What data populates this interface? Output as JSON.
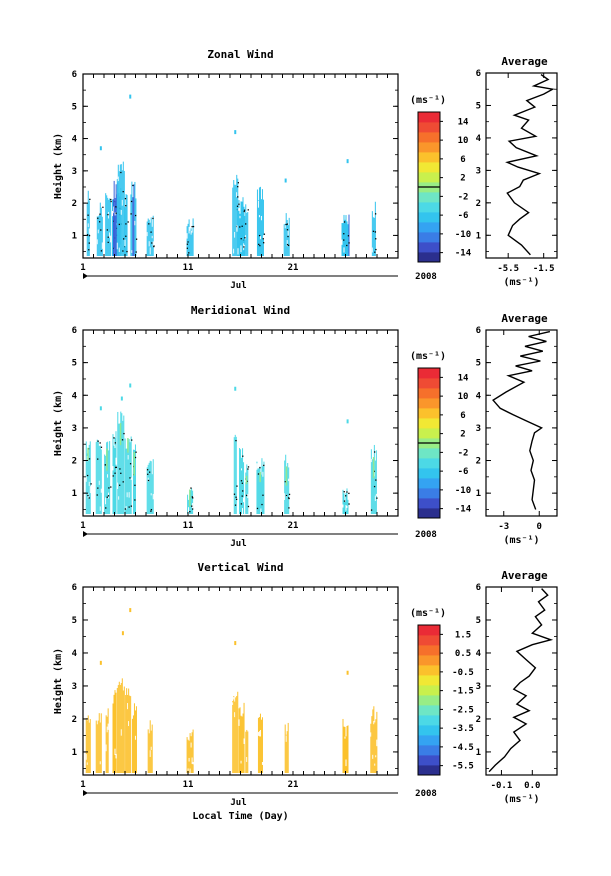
{
  "chart_data": [
    {
      "type": "heatmap",
      "title": "Zonal Wind",
      "ylabel": "Height (km)",
      "ylim": [
        0.3,
        6
      ],
      "yticks": [
        "1",
        "2",
        "3",
        "4",
        "5",
        "6"
      ],
      "xlim": [
        1,
        31
      ],
      "xticks": [
        "1",
        "11",
        "21"
      ],
      "x_month_label": "Jul",
      "x_year_label": "2008",
      "units_label": "(ms⁻¹)",
      "colorbar_ticks": [
        "14",
        "10",
        "6",
        "2",
        "-2",
        "-6",
        "-10",
        "-14"
      ],
      "colorbar_range": [
        -15,
        15
      ],
      "dominant_color": "#33c4ee",
      "patches": [
        {
          "day": 1.5,
          "ytop": 2.5,
          "dark": 0
        },
        {
          "day": 2.6,
          "ytop": 2.1,
          "dark": 0
        },
        {
          "day": 3.4,
          "ytop": 2.4,
          "dark": 0
        },
        {
          "day": 4.0,
          "ytop": 2.2,
          "dark": 1
        },
        {
          "day": 4.3,
          "ytop": 2.7,
          "dark": 1
        },
        {
          "day": 4.6,
          "ytop": 3.3,
          "dark": 0
        },
        {
          "day": 5.1,
          "ytop": 2.3,
          "dark": 0
        },
        {
          "day": 5.8,
          "ytop": 2.7,
          "dark": 1
        },
        {
          "day": 7.4,
          "ytop": 1.8,
          "dark": 0
        },
        {
          "day": 11.2,
          "ytop": 1.6,
          "dark": 0
        },
        {
          "day": 15.5,
          "ytop": 2.9,
          "dark": 0
        },
        {
          "day": 16.0,
          "ytop": 2.2,
          "dark": 0
        },
        {
          "day": 16.5,
          "ytop": 2.0,
          "dark": 0
        },
        {
          "day": 17.9,
          "ytop": 2.6,
          "dark": 0
        },
        {
          "day": 20.4,
          "ytop": 1.8,
          "dark": 0
        },
        {
          "day": 26.0,
          "ytop": 1.7,
          "dark": 1
        },
        {
          "day": 28.7,
          "ytop": 2.1,
          "dark": 0
        }
      ],
      "speckles": [
        {
          "day": 5.5,
          "y": 5.3
        },
        {
          "day": 2.7,
          "y": 3.7
        },
        {
          "day": 15.5,
          "y": 4.2
        },
        {
          "day": 26.2,
          "y": 3.3
        },
        {
          "day": 20.3,
          "y": 2.7
        }
      ],
      "average": {
        "title": "Average",
        "xlabel": "(ms⁻¹)",
        "xticks": [
          "-5.5",
          "-1.5"
        ],
        "xlim": [
          -8,
          0
        ],
        "yticks": [
          "1",
          "2",
          "3",
          "4",
          "5",
          "6"
        ],
        "profile": [
          {
            "x": -3.0,
            "y": 0.4
          },
          {
            "x": -4.0,
            "y": 0.7
          },
          {
            "x": -5.5,
            "y": 1.0
          },
          {
            "x": -5.0,
            "y": 1.3
          },
          {
            "x": -4.2,
            "y": 1.5
          },
          {
            "x": -3.2,
            "y": 1.7
          },
          {
            "x": -4.8,
            "y": 2.0
          },
          {
            "x": -5.6,
            "y": 2.3
          },
          {
            "x": -4.2,
            "y": 2.5
          },
          {
            "x": -3.8,
            "y": 2.7
          },
          {
            "x": -2.0,
            "y": 2.9
          },
          {
            "x": -4.4,
            "y": 3.1
          },
          {
            "x": -5.6,
            "y": 3.25
          },
          {
            "x": -2.3,
            "y": 3.45
          },
          {
            "x": -4.6,
            "y": 3.7
          },
          {
            "x": -5.4,
            "y": 3.9
          },
          {
            "x": -2.4,
            "y": 4.05
          },
          {
            "x": -4.0,
            "y": 4.3
          },
          {
            "x": -3.2,
            "y": 4.55
          },
          {
            "x": -4.8,
            "y": 4.7
          },
          {
            "x": -2.5,
            "y": 4.95
          },
          {
            "x": -3.4,
            "y": 5.15
          },
          {
            "x": -1.5,
            "y": 5.35
          },
          {
            "x": -0.5,
            "y": 5.5
          },
          {
            "x": -2.6,
            "y": 5.6
          },
          {
            "x": -1.0,
            "y": 5.8
          },
          {
            "x": -1.8,
            "y": 5.95
          }
        ]
      }
    },
    {
      "type": "heatmap",
      "title": "Meridional Wind",
      "ylabel": "Height (km)",
      "ylim": [
        0.3,
        6
      ],
      "yticks": [
        "1",
        "2",
        "3",
        "4",
        "5",
        "6"
      ],
      "xlim": [
        1,
        31
      ],
      "xticks": [
        "1",
        "11",
        "21"
      ],
      "x_month_label": "Jul",
      "x_year_label": "2008",
      "units_label": "(ms⁻¹)",
      "colorbar_ticks": [
        "14",
        "10",
        "6",
        "2",
        "-2",
        "-6",
        "-10",
        "-14"
      ],
      "colorbar_range": [
        -15,
        15
      ],
      "dominant_color": "#4cd9e6",
      "patches": [
        {
          "day": 1.5,
          "ytop": 2.6,
          "dark": 0
        },
        {
          "day": 2.5,
          "ytop": 2.8,
          "dark": 0
        },
        {
          "day": 3.3,
          "ytop": 2.6,
          "dark": 0
        },
        {
          "day": 4.0,
          "ytop": 3.0,
          "dark": 0
        },
        {
          "day": 4.6,
          "ytop": 3.5,
          "dark": 0
        },
        {
          "day": 5.3,
          "ytop": 2.9,
          "dark": 0
        },
        {
          "day": 5.9,
          "ytop": 2.5,
          "dark": 0
        },
        {
          "day": 7.4,
          "ytop": 2.1,
          "dark": 0
        },
        {
          "day": 11.2,
          "ytop": 1.3,
          "dark": 0
        },
        {
          "day": 15.5,
          "ytop": 3.0,
          "dark": 0
        },
        {
          "day": 16.1,
          "ytop": 2.4,
          "dark": 0
        },
        {
          "day": 16.6,
          "ytop": 2.0,
          "dark": 0
        },
        {
          "day": 17.9,
          "ytop": 2.1,
          "dark": 0
        },
        {
          "day": 20.4,
          "ytop": 2.2,
          "dark": 0
        },
        {
          "day": 26.0,
          "ytop": 1.2,
          "dark": 0
        },
        {
          "day": 28.7,
          "ytop": 2.5,
          "dark": 0
        }
      ],
      "speckles": [
        {
          "day": 5.5,
          "y": 4.3
        },
        {
          "day": 2.7,
          "y": 3.6
        },
        {
          "day": 15.5,
          "y": 4.2
        },
        {
          "day": 26.2,
          "y": 3.2
        },
        {
          "day": 4.7,
          "y": 3.9
        }
      ],
      "average": {
        "title": "Average",
        "xlabel": "(ms⁻¹)",
        "xticks": [
          "-3",
          "0"
        ],
        "xlim": [
          -4.5,
          1.5
        ],
        "yticks": [
          "1",
          "2",
          "3",
          "4",
          "5",
          "6"
        ],
        "profile": [
          {
            "x": -0.3,
            "y": 0.5
          },
          {
            "x": -0.6,
            "y": 0.8
          },
          {
            "x": -0.5,
            "y": 1.1
          },
          {
            "x": -0.4,
            "y": 1.4
          },
          {
            "x": -0.7,
            "y": 1.7
          },
          {
            "x": -0.5,
            "y": 2.0
          },
          {
            "x": -0.8,
            "y": 2.3
          },
          {
            "x": -0.6,
            "y": 2.6
          },
          {
            "x": -0.4,
            "y": 2.85
          },
          {
            "x": 0.2,
            "y": 3.0
          },
          {
            "x": -1.0,
            "y": 3.2
          },
          {
            "x": -2.2,
            "y": 3.4
          },
          {
            "x": -3.3,
            "y": 3.6
          },
          {
            "x": -3.9,
            "y": 3.85
          },
          {
            "x": -2.8,
            "y": 4.1
          },
          {
            "x": -1.3,
            "y": 4.4
          },
          {
            "x": -2.6,
            "y": 4.6
          },
          {
            "x": -0.6,
            "y": 4.75
          },
          {
            "x": -2.0,
            "y": 4.9
          },
          {
            "x": 0.1,
            "y": 5.05
          },
          {
            "x": -1.6,
            "y": 5.2
          },
          {
            "x": 0.3,
            "y": 5.35
          },
          {
            "x": -1.2,
            "y": 5.5
          },
          {
            "x": 0.6,
            "y": 5.65
          },
          {
            "x": -0.9,
            "y": 5.8
          },
          {
            "x": 0.9,
            "y": 5.95
          }
        ]
      }
    },
    {
      "type": "heatmap",
      "title": "Vertical Wind",
      "ylabel": "Height (km)",
      "xlabel": "Local Time (Day)",
      "ylim": [
        0.3,
        6
      ],
      "yticks": [
        "1",
        "2",
        "3",
        "4",
        "5",
        "6"
      ],
      "xlim": [
        1,
        31
      ],
      "xticks": [
        "1",
        "11",
        "21"
      ],
      "x_month_label": "Jul",
      "x_year_label": "2008",
      "units_label": "(ms⁻¹)",
      "colorbar_ticks": [
        "1.5",
        "0.5",
        "-0.5",
        "-1.5",
        "-2.5",
        "-3.5",
        "-4.5",
        "-5.5"
      ],
      "colorbar_range": [
        -6,
        2
      ],
      "dominant_color": "#fbc12c",
      "patches": [
        {
          "day": 1.5,
          "ytop": 2.4,
          "dark": 0
        },
        {
          "day": 2.5,
          "ytop": 2.2,
          "dark": 0
        },
        {
          "day": 3.3,
          "ytop": 2.6,
          "dark": 0
        },
        {
          "day": 4.0,
          "ytop": 3.0,
          "dark": 0
        },
        {
          "day": 4.6,
          "ytop": 3.3,
          "dark": 0
        },
        {
          "day": 5.3,
          "ytop": 3.0,
          "dark": 0
        },
        {
          "day": 5.9,
          "ytop": 2.5,
          "dark": 0
        },
        {
          "day": 7.4,
          "ytop": 2.1,
          "dark": 0
        },
        {
          "day": 11.2,
          "ytop": 1.8,
          "dark": 0
        },
        {
          "day": 15.5,
          "ytop": 3.0,
          "dark": 0
        },
        {
          "day": 16.1,
          "ytop": 2.6,
          "dark": 0
        },
        {
          "day": 16.6,
          "ytop": 2.1,
          "dark": 0
        },
        {
          "day": 17.9,
          "ytop": 2.5,
          "dark": 0
        },
        {
          "day": 20.4,
          "ytop": 1.9,
          "dark": 0
        },
        {
          "day": 26.0,
          "ytop": 2.0,
          "dark": 0
        },
        {
          "day": 28.7,
          "ytop": 2.4,
          "dark": 0
        }
      ],
      "speckles": [
        {
          "day": 5.5,
          "y": 5.3
        },
        {
          "day": 2.7,
          "y": 3.7
        },
        {
          "day": 15.5,
          "y": 4.3
        },
        {
          "day": 26.2,
          "y": 3.4
        },
        {
          "day": 4.8,
          "y": 4.6
        }
      ],
      "average": {
        "title": "Average",
        "xlabel": "(ms⁻¹)",
        "xticks": [
          "-0.1",
          "0.0"
        ],
        "xlim": [
          -0.15,
          0.08
        ],
        "yticks": [
          "1",
          "2",
          "3",
          "4",
          "5",
          "6"
        ],
        "profile": [
          {
            "x": -0.14,
            "y": 0.4
          },
          {
            "x": -0.12,
            "y": 0.6
          },
          {
            "x": -0.09,
            "y": 0.85
          },
          {
            "x": -0.07,
            "y": 1.1
          },
          {
            "x": -0.04,
            "y": 1.35
          },
          {
            "x": -0.06,
            "y": 1.6
          },
          {
            "x": -0.02,
            "y": 1.85
          },
          {
            "x": -0.06,
            "y": 2.05
          },
          {
            "x": -0.01,
            "y": 2.25
          },
          {
            "x": -0.05,
            "y": 2.45
          },
          {
            "x": -0.02,
            "y": 2.7
          },
          {
            "x": -0.06,
            "y": 2.9
          },
          {
            "x": -0.04,
            "y": 3.1
          },
          {
            "x": -0.01,
            "y": 3.3
          },
          {
            "x": 0.01,
            "y": 3.55
          },
          {
            "x": -0.02,
            "y": 3.8
          },
          {
            "x": -0.05,
            "y": 4.05
          },
          {
            "x": 0.0,
            "y": 4.25
          },
          {
            "x": 0.06,
            "y": 4.4
          },
          {
            "x": 0.0,
            "y": 4.6
          },
          {
            "x": 0.03,
            "y": 4.85
          },
          {
            "x": 0.01,
            "y": 5.1
          },
          {
            "x": 0.04,
            "y": 5.3
          },
          {
            "x": 0.02,
            "y": 5.55
          },
          {
            "x": 0.05,
            "y": 5.75
          },
          {
            "x": 0.03,
            "y": 5.95
          }
        ]
      }
    }
  ],
  "palette": [
    "#2b2f8e",
    "#3d4fc9",
    "#3a7de6",
    "#34a3f2",
    "#33c4ee",
    "#4cd9e6",
    "#6ee6c5",
    "#98ed86",
    "#c9f04d",
    "#f1e834",
    "#fbc12c",
    "#fa962b",
    "#f6702b",
    "#ef4b34",
    "#ea2b36"
  ]
}
